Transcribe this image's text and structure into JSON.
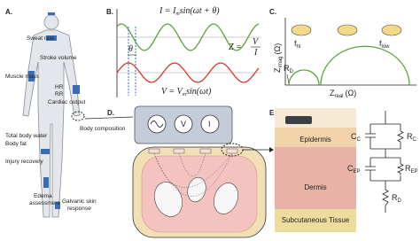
{
  "panel_a": {
    "label": "A.",
    "annotations": [
      "Sweat rate",
      "Stroke volume",
      "Muscle mass",
      "HR",
      "RR",
      "Cardiac output",
      "Total body water",
      "Body fat",
      "Injury recovery",
      "Body composition",
      "Edema",
      "assessment",
      "Galvanic skin",
      "response"
    ]
  },
  "panel_b": {
    "label": "B.",
    "current_eq": {
      "lhs": "I = I",
      "sub": "m",
      "rhs": "sin(ωt + θ)"
    },
    "phase": "θ",
    "impedance_eq": {
      "lhs": "Z =",
      "num": "V",
      "den": "I"
    },
    "voltage_eq": {
      "lhs": "V = V",
      "sub": "m",
      "rhs": "sin(ωt)"
    }
  },
  "panel_c": {
    "label": "C.",
    "y_axis": {
      "main": "Z",
      "sub": "imag",
      "unit": "(Ω)"
    },
    "x_axis": {
      "main": "Z",
      "sub": "real",
      "unit": "(Ω)"
    },
    "f_hi": {
      "main": "f",
      "sub": "hi"
    },
    "f_low": {
      "main": "f",
      "sub": "low"
    },
    "r_d": {
      "main": "R",
      "sub": "D"
    }
  },
  "panel_d": {
    "label": "D.",
    "meters": [
      "V",
      "I"
    ]
  },
  "panel_e": {
    "label": "E.",
    "layers": [
      "Epidermis",
      "Dermis",
      "Subcutaneous Tissue"
    ],
    "components": [
      {
        "main": "C",
        "sub": "C"
      },
      {
        "main": "R",
        "sub": "C"
      },
      {
        "main": "C",
        "sub": "EP"
      },
      {
        "main": "R",
        "sub": "EP"
      },
      {
        "main": "R",
        "sub": "D"
      }
    ]
  }
}
